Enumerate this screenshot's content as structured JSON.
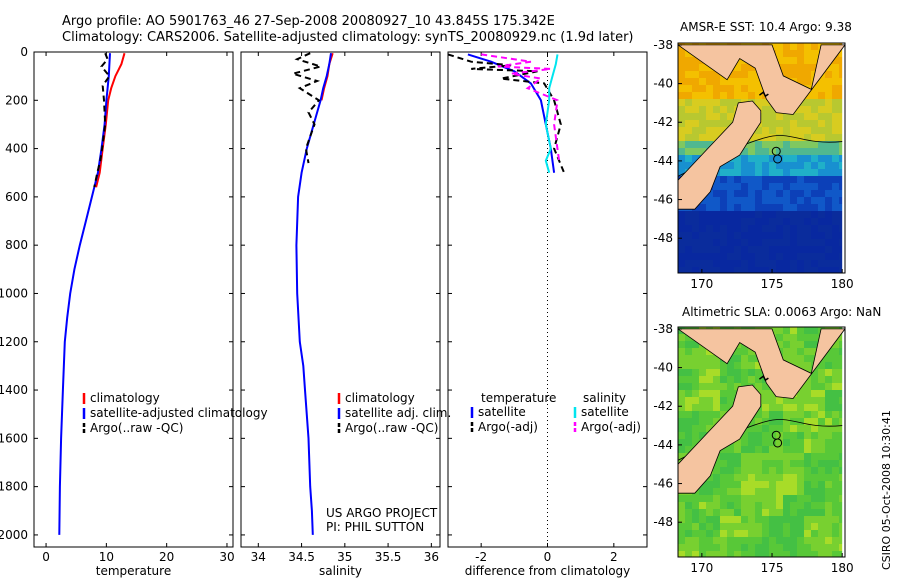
{
  "header": {
    "line1": "Argo profile: AO 5901763_46 27-Sep-2008 20080927_10 43.845S 175.342E",
    "line2": "Climatology: CARS2006. Satellite-adjusted climatology: synTS_20080929.nc (1.9d later)"
  },
  "colors": {
    "climatology": "#ff0000",
    "satellite": "#0000ff",
    "argo": "#000000",
    "sat_diff_sal": "#00e5ee",
    "argo_diff_sal": "#ff00ff",
    "land": "#f5c4a0"
  },
  "chart_data": [
    {
      "type": "line",
      "id": "temperature",
      "xlabel": "temperature",
      "xlim": [
        -2,
        31
      ],
      "ylim": [
        2050,
        0
      ],
      "xticks": [
        0,
        10,
        20,
        30
      ],
      "xtick_labels": [
        "0",
        "10",
        "20",
        "30"
      ],
      "yticks": [
        0,
        200,
        400,
        600,
        800,
        1000,
        1200,
        1400,
        1600,
        1800,
        2000
      ],
      "ytick_labels": [
        "0",
        "200",
        "400",
        "600",
        "800",
        "1000",
        "1200",
        "1400",
        "1600",
        "1800",
        "2000"
      ],
      "series": [
        {
          "name": "climatology",
          "color": "#ff0000",
          "dash": false,
          "x": [
            13,
            12.5,
            11.5,
            10.8,
            10.3,
            9.9,
            9.4,
            8.9,
            8.3
          ],
          "y": [
            5,
            50,
            100,
            150,
            200,
            300,
            400,
            500,
            560
          ]
        },
        {
          "name": "satellite-adjusted climatology",
          "color": "#0000ff",
          "dash": false,
          "x": [
            10.6,
            10.5,
            10.4,
            10.2,
            10.0,
            9.7,
            9.2,
            8.6,
            7.6,
            6.6,
            5.6,
            4.7,
            4.0,
            3.5,
            3.1,
            2.8,
            2.5,
            2.3,
            2.2
          ],
          "y": [
            5,
            50,
            100,
            150,
            200,
            300,
            400,
            500,
            600,
            700,
            800,
            900,
            1000,
            1100,
            1200,
            1400,
            1600,
            1800,
            2000
          ]
        },
        {
          "name": "Argo(..raw -QC)",
          "color": "#000000",
          "dash": true,
          "x": [
            9.8,
            10.2,
            9.2,
            10.5,
            9.4,
            9.6,
            9.8,
            9.3,
            9.0,
            8.5,
            8.0
          ],
          "y": [
            5,
            30,
            60,
            100,
            140,
            200,
            300,
            400,
            450,
            500,
            560
          ]
        }
      ],
      "legend": {
        "placement": "lower-right",
        "entries": [
          "climatology",
          "satellite-adjusted climatology",
          "Argo(..raw -QC)"
        ]
      }
    },
    {
      "type": "line",
      "id": "salinity",
      "xlabel": "salinity",
      "xlim": [
        33.8,
        36.1
      ],
      "ylim": [
        2050,
        0
      ],
      "xticks": [
        34,
        34.5,
        35,
        35.5,
        36
      ],
      "xtick_labels": [
        "34",
        "34.5",
        "35",
        "35.5",
        "36"
      ],
      "series": [
        {
          "name": "climatology",
          "color": "#ff0000",
          "dash": false,
          "x": [
            34.86,
            34.82,
            34.8,
            34.76,
            34.73
          ],
          "y": [
            5,
            50,
            100,
            150,
            200
          ]
        },
        {
          "name": "satellite adj. clim.",
          "color": "#0000ff",
          "dash": false,
          "x": [
            34.84,
            34.82,
            34.79,
            34.75,
            34.72,
            34.64,
            34.56,
            34.5,
            34.46,
            34.44,
            34.45,
            34.48,
            34.52,
            34.54,
            34.58,
            34.6,
            34.62,
            34.63
          ],
          "y": [
            5,
            50,
            100,
            150,
            200,
            300,
            400,
            500,
            600,
            800,
            1000,
            1200,
            1300,
            1400,
            1600,
            1800,
            1900,
            2000
          ]
        },
        {
          "name": "Argo(..raw -QC)",
          "color": "#000000",
          "dash": true,
          "x": [
            34.6,
            34.45,
            34.72,
            34.4,
            34.68,
            34.48,
            34.7,
            34.58,
            34.65,
            34.6,
            34.55,
            34.58
          ],
          "y": [
            5,
            30,
            60,
            90,
            120,
            150,
            200,
            250,
            300,
            350,
            400,
            460
          ]
        }
      ],
      "legend": {
        "placement": "lower-right",
        "entries": [
          "climatology",
          "satellite adj. clim.",
          "Argo(..raw -QC)"
        ]
      },
      "annotation": [
        "US ARGO PROJECT",
        "PI: PHIL SUTTON"
      ]
    },
    {
      "type": "line",
      "id": "difference",
      "xlabel": "difference from climatology",
      "xlim": [
        -3,
        3
      ],
      "ylim": [
        2050,
        0
      ],
      "xticks": [
        -2,
        0,
        2
      ],
      "xtick_labels": [
        "-2",
        "0",
        "2"
      ],
      "zero_line": true,
      "series": [
        {
          "name": "temperature satellite",
          "color": "#0000ff",
          "dash": false,
          "x": [
            -2.4,
            -1.7,
            -1.0,
            -0.5,
            -0.2,
            -0.05,
            0.1,
            0.2
          ],
          "y": [
            10,
            40,
            80,
            130,
            200,
            300,
            400,
            500
          ]
        },
        {
          "name": "temperature Argo(-adj)",
          "color": "#000000",
          "dash": true,
          "x": [
            -3.0,
            -2.3,
            -1.1,
            -2.3,
            -0.3,
            -1.4,
            -0.1,
            0.2,
            0.3,
            0.4,
            0.2,
            0.5
          ],
          "y": [
            10,
            40,
            55,
            70,
            80,
            110,
            130,
            200,
            250,
            300,
            400,
            500
          ]
        },
        {
          "name": "salinity satellite",
          "color": "#00e5ee",
          "dash": false,
          "x": [
            0.3,
            0.25,
            0.15,
            0.05,
            0.05,
            -0.05,
            0.1,
            -0.05,
            0.05
          ],
          "y": [
            10,
            50,
            100,
            150,
            200,
            300,
            400,
            450,
            500
          ]
        },
        {
          "name": "salinity Argo(-adj)",
          "color": "#ff00ff",
          "dash": true,
          "x": [
            -2.0,
            -0.5,
            -1.5,
            0.1,
            -1.1,
            -0.2,
            -0.6,
            0.3,
            0.2,
            0.35
          ],
          "y": [
            10,
            40,
            60,
            70,
            90,
            110,
            150,
            200,
            300,
            450
          ]
        }
      ],
      "legend": {
        "placement": "lower-center",
        "col1_title": "temperature",
        "col1": [
          "satellite",
          "Argo(-adj)"
        ],
        "col2_title": "salinity",
        "col2": [
          "satellite",
          "Argo(-adj)"
        ]
      }
    }
  ],
  "maps": [
    {
      "id": "sst",
      "title": "AMSR-E SST: 10.4 Argo: 9.38",
      "xticks": [
        "170",
        "175",
        "180"
      ],
      "yticks": [
        "-38",
        "-40",
        "-42",
        "-44",
        "-46",
        "-48"
      ]
    },
    {
      "id": "sla",
      "title": "Altimetric SLA: 0.0063 Argo: NaN",
      "xticks": [
        "170",
        "175",
        "180"
      ],
      "yticks": [
        "-38",
        "-40",
        "-42",
        "-44",
        "-46",
        "-48"
      ]
    }
  ],
  "credit": "CSIRO 05-Oct-2008 10:30:41"
}
